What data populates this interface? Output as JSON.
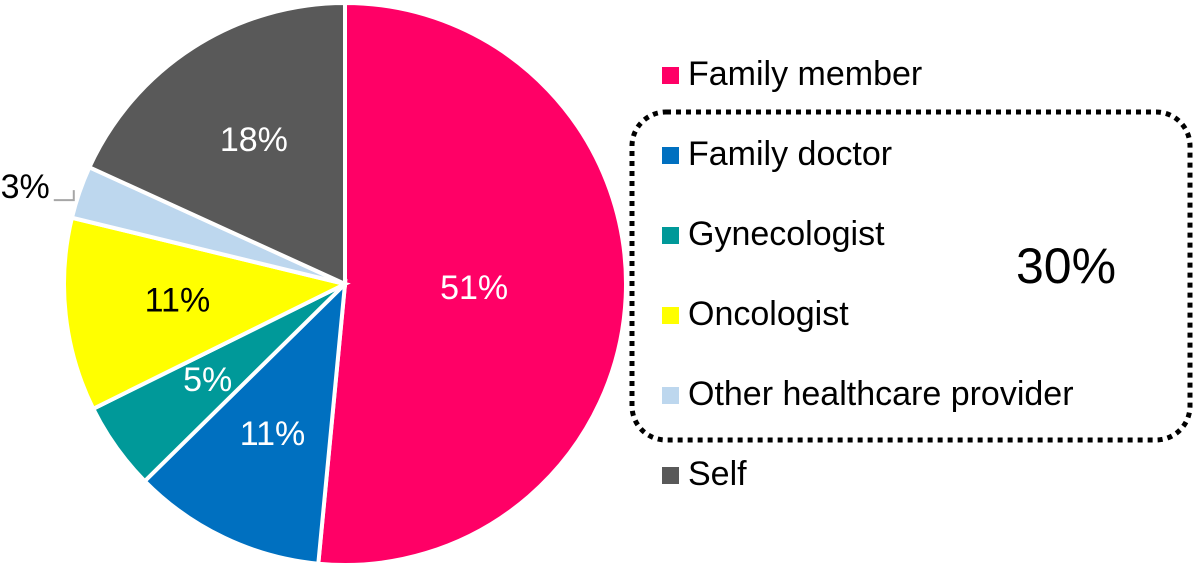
{
  "chart_data": {
    "type": "pie",
    "categories": [
      "Family member",
      "Family doctor",
      "Gynecologist",
      "Oncologist",
      "Other healthcare provider",
      "Self"
    ],
    "values": [
      51,
      11,
      5,
      11,
      3,
      18
    ],
    "value_labels": [
      "51%",
      "11%",
      "5%",
      "11%",
      "3%",
      "18%"
    ],
    "colors": [
      "#ff0066",
      "#0070c0",
      "#009999",
      "#ffff00",
      "#bdd7ee",
      "#595959"
    ],
    "annotation": "30%",
    "legend": "right"
  }
}
